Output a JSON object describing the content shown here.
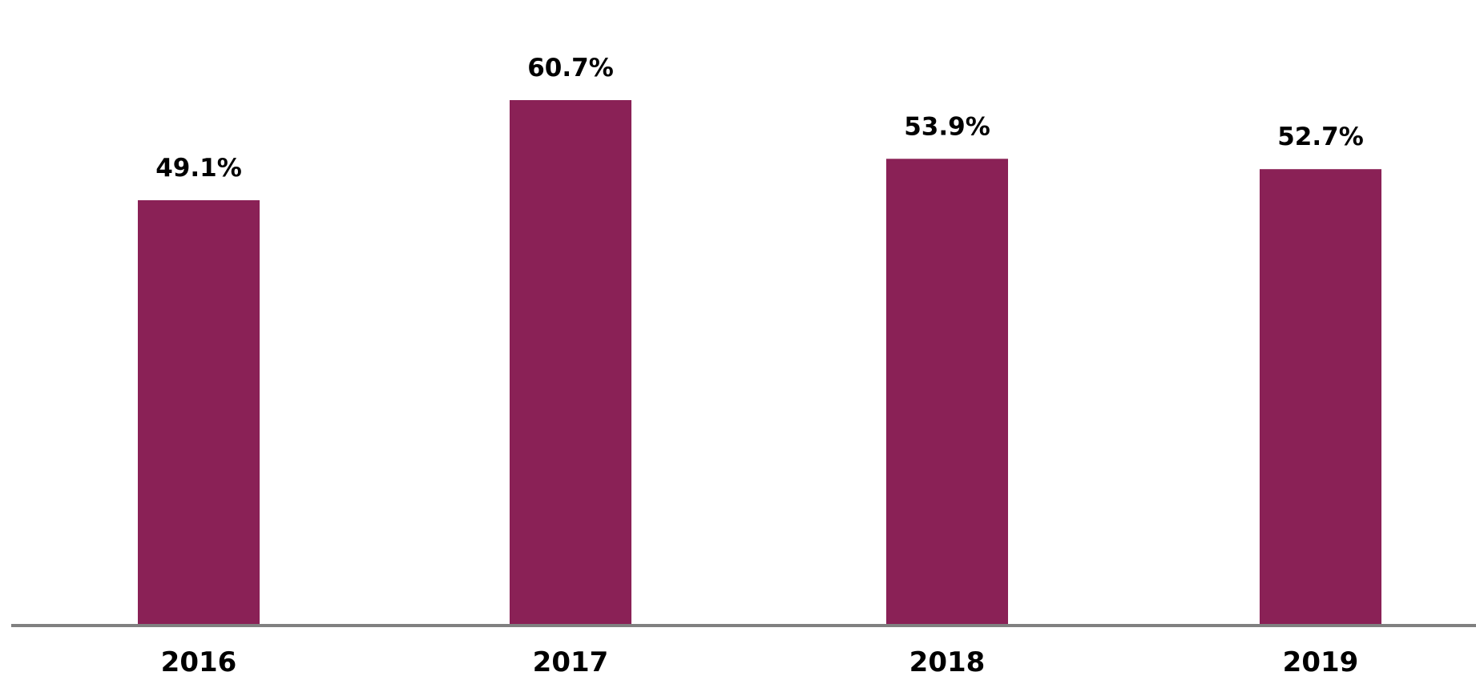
{
  "chart_data": {
    "type": "bar",
    "categories": [
      "2016",
      "2017",
      "2018",
      "2019"
    ],
    "values": [
      49.1,
      60.7,
      53.9,
      52.7
    ],
    "data_labels": [
      "49.1%",
      "60.7%",
      "53.9%",
      "52.7%"
    ],
    "title": "",
    "xlabel": "",
    "ylabel": "",
    "ylim": [
      0,
      60.7
    ],
    "grid": false,
    "legend": "none",
    "colors": {
      "bar": "#8a2156",
      "axis": "#808080"
    }
  }
}
